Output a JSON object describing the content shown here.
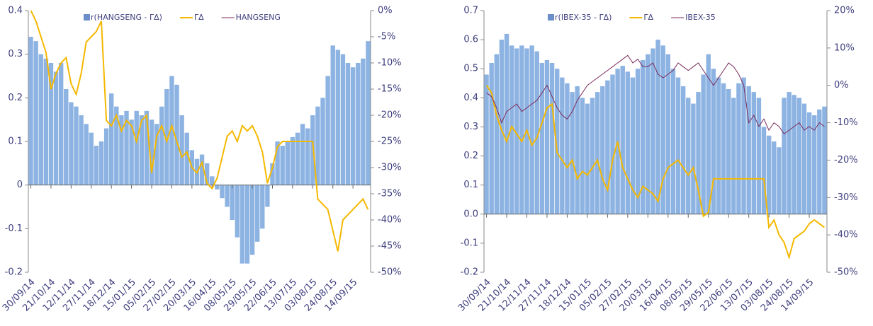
{
  "chart_data": [
    {
      "type": "bar",
      "categories": [
        "30/09/14",
        null,
        null,
        null,
        "21/10/14",
        null,
        null,
        null,
        "12/11/14",
        null,
        null,
        null,
        "27/11/14",
        null,
        null,
        null,
        "18/12/14",
        null,
        null,
        null,
        "15/01/15",
        null,
        null,
        null,
        "05/02/15",
        null,
        null,
        null,
        "27/02/15",
        null,
        null,
        null,
        "20/03/15",
        null,
        null,
        null,
        "16/04/15",
        null,
        null,
        null,
        "08/05/15",
        null,
        null,
        null,
        "29/05/15",
        null,
        null,
        null,
        "22/06/15",
        null,
        null,
        null,
        "13/07/15",
        null,
        null,
        null,
        "03/08/15",
        null,
        null,
        null,
        "24/08/15",
        null,
        null,
        null,
        "14/09/15",
        null,
        null,
        null
      ],
      "series": [
        {
          "name": "r(HANGSENG - ΓΔ)",
          "type": "bar",
          "color": "#8db3e2",
          "values": [
            0.34,
            0.33,
            0.3,
            0.29,
            0.28,
            0.26,
            0.28,
            0.22,
            0.19,
            0.18,
            0.16,
            0.14,
            0.12,
            0.09,
            0.1,
            0.13,
            0.21,
            0.18,
            0.16,
            0.17,
            0.15,
            0.17,
            0.16,
            0.17,
            0.15,
            0.14,
            0.18,
            0.22,
            0.25,
            0.23,
            0.16,
            0.12,
            0.08,
            0.06,
            0.07,
            0.05,
            0.02,
            -0.01,
            -0.03,
            -0.05,
            -0.08,
            -0.12,
            -0.18,
            -0.18,
            -0.16,
            -0.13,
            -0.1,
            -0.05,
            0.05,
            0.1,
            0.09,
            0.1,
            0.11,
            0.12,
            0.14,
            0.13,
            0.16,
            0.18,
            0.2,
            0.25,
            0.32,
            0.31,
            0.3,
            0.28,
            0.27,
            0.28,
            0.29,
            0.33
          ]
        },
        {
          "name": "ΓΔ",
          "type": "line",
          "axis": "y2",
          "color": "#f5b800",
          "values": [
            0,
            -2,
            -5,
            -8,
            -15,
            -12,
            -10,
            -9,
            -14,
            -16,
            -12,
            -6,
            -5,
            -4,
            -2,
            -21,
            -22,
            -20,
            -23,
            -21,
            -22,
            -25,
            -21,
            -20,
            -31,
            -24,
            -22,
            -25,
            -22,
            -25,
            -28,
            -27,
            -30,
            -31,
            -29,
            -33,
            -34,
            -32,
            -28,
            -24,
            -23,
            -25,
            -22,
            -23,
            -22,
            -24,
            -27,
            -33,
            -30,
            -26,
            -25,
            -25,
            -25,
            -25,
            -25,
            -25,
            -25,
            -36,
            -37,
            -38,
            -42,
            -46,
            -40,
            -39,
            -38,
            -37,
            -36,
            -38
          ]
        },
        {
          "name": "HANGSENG",
          "type": "line",
          "color": "#7a2b5c"
        }
      ],
      "ylim": [
        -0.2,
        0.4
      ],
      "yticks": [
        0.4,
        0.3,
        0.2,
        0.1,
        0,
        -0.1,
        -0.2
      ],
      "y2lim": [
        -50,
        0
      ],
      "y2ticks": [
        {
          "value": 0,
          "label": "0%"
        },
        {
          "value": -5,
          "label": "-5%"
        },
        {
          "value": -10,
          "label": "-10%"
        },
        {
          "value": -15,
          "label": "-15%"
        },
        {
          "value": -20,
          "label": "-20%"
        },
        {
          "value": -25,
          "label": "-25%"
        },
        {
          "value": -30,
          "label": "-30%"
        },
        {
          "value": -35,
          "label": "-35%"
        },
        {
          "value": -40,
          "label": "-40%"
        },
        {
          "value": -45,
          "label": "-45%"
        },
        {
          "value": -50,
          "label": "-50%"
        }
      ]
    },
    {
      "type": "bar",
      "categories": [
        "30/09/14",
        null,
        null,
        null,
        "21/10/14",
        null,
        null,
        null,
        "12/11/14",
        null,
        null,
        null,
        "27/11/14",
        null,
        null,
        null,
        "18/12/14",
        null,
        null,
        null,
        "15/01/15",
        null,
        null,
        null,
        "05/02/15",
        null,
        null,
        null,
        "27/02/15",
        null,
        null,
        null,
        "20/03/15",
        null,
        null,
        null,
        "16/04/15",
        null,
        null,
        null,
        "08/05/15",
        null,
        null,
        null,
        "29/05/15",
        null,
        null,
        null,
        "22/06/15",
        null,
        null,
        null,
        "13/07/15",
        null,
        null,
        null,
        "03/08/15",
        null,
        null,
        null,
        "24/08/15",
        null,
        null,
        null,
        "14/09/15",
        null,
        null,
        null
      ],
      "series": [
        {
          "name": "r(IBEX-35 - ΓΔ)",
          "type": "bar",
          "color": "#8db3e2",
          "values": [
            0.48,
            0.52,
            0.55,
            0.6,
            0.62,
            0.58,
            0.57,
            0.58,
            0.57,
            0.58,
            0.56,
            0.52,
            0.53,
            0.52,
            0.5,
            0.47,
            0.45,
            0.42,
            0.44,
            0.4,
            0.38,
            0.4,
            0.42,
            0.44,
            0.46,
            0.48,
            0.5,
            0.51,
            0.49,
            0.47,
            0.5,
            0.53,
            0.55,
            0.57,
            0.6,
            0.58,
            0.55,
            0.5,
            0.47,
            0.44,
            0.4,
            0.38,
            0.42,
            0.48,
            0.55,
            0.5,
            0.47,
            0.45,
            0.43,
            0.4,
            0.45,
            0.47,
            0.44,
            0.42,
            0.4,
            0.3,
            0.27,
            0.25,
            0.23,
            0.4,
            0.42,
            0.41,
            0.4,
            0.38,
            0.35,
            0.34,
            0.36,
            0.37
          ]
        },
        {
          "name": "ΓΔ",
          "type": "line",
          "axis": "y2",
          "color": "#f5b800",
          "values": [
            0,
            -2,
            -8,
            -12,
            -15,
            -11,
            -13,
            -15,
            -12,
            -16,
            -14,
            -10,
            -6,
            -5,
            -18,
            -20,
            -22,
            -20,
            -25,
            -23,
            -24,
            -22,
            -20,
            -25,
            -28,
            -20,
            -15,
            -22,
            -25,
            -28,
            -30,
            -27,
            -28,
            -29,
            -31,
            -25,
            -22,
            -21,
            -20,
            -22,
            -24,
            -22,
            -28,
            -35,
            -34,
            -25,
            -25,
            -25,
            -25,
            -25,
            -25,
            -25,
            -25,
            -25,
            -25,
            -25,
            -38,
            -36,
            -40,
            -42,
            -46,
            -41,
            -40,
            -39,
            -37,
            -36,
            -37,
            -38
          ]
        },
        {
          "name": "IBEX-35",
          "type": "line",
          "axis": "y2",
          "color": "#7a2b5c",
          "values": [
            -2,
            -3,
            -6,
            -10,
            -7,
            -6,
            -5,
            -7,
            -6,
            -5,
            -4,
            -2,
            0,
            -3,
            -6,
            -8,
            -9,
            -7,
            -4,
            -2,
            0,
            1,
            2,
            3,
            4,
            5,
            6,
            7,
            8,
            6,
            7,
            5,
            5,
            6,
            3,
            2,
            3,
            4,
            6,
            5,
            4,
            5,
            6,
            4,
            2,
            0,
            2,
            4,
            6,
            5,
            3,
            0,
            -10,
            -8,
            -11,
            -9,
            -12,
            -10,
            -11,
            -13,
            -12,
            -11,
            -10,
            -12,
            -11,
            -12,
            -10,
            -11
          ]
        }
      ],
      "ylim": [
        -0.2,
        0.7
      ],
      "yticks": [
        0.7,
        0.6,
        0.5,
        0.4,
        0.3,
        0.2,
        0.1,
        {
          "value": 0,
          "label": "0.0"
        },
        -0.1,
        -0.2
      ],
      "y2lim": [
        -50,
        20
      ],
      "y2ticks": [
        {
          "value": 20,
          "label": "20%"
        },
        {
          "value": 10,
          "label": "10%"
        },
        {
          "value": 0,
          "label": "0%"
        },
        {
          "value": -10,
          "label": "-10%"
        },
        {
          "value": -20,
          "label": "-20%"
        },
        {
          "value": -30,
          "label": "-30%"
        },
        {
          "value": -40,
          "label": "-40%"
        },
        {
          "value": -50,
          "label": "-50%"
        }
      ]
    }
  ]
}
